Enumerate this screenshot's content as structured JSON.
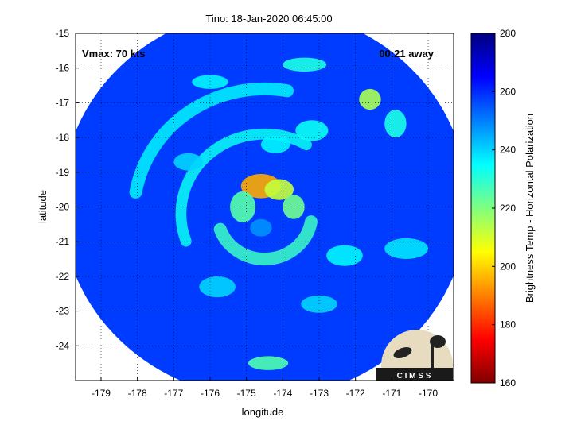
{
  "chart_data": {
    "type": "heatmap",
    "title": "Tino: 18-Jan-2020 06:45:00",
    "xlabel": "longitude",
    "ylabel": "latitude",
    "xlim": [
      -179.7,
      -169.3
    ],
    "ylim": [
      -25,
      -15
    ],
    "xticks": [
      -179,
      -178,
      -177,
      -176,
      -175,
      -174,
      -173,
      -172,
      -171,
      -170
    ],
    "yticks": [
      -15,
      -16,
      -17,
      -18,
      -19,
      -20,
      -21,
      -22,
      -23,
      -24
    ],
    "grid": true,
    "annotations": {
      "left": "Vmax: 70 kts",
      "right": "00:21 away"
    },
    "colorbar": {
      "label": "Brightness Temp - Horizontal Polarization",
      "range": [
        160,
        280
      ],
      "ticks": [
        160,
        180,
        200,
        220,
        240,
        260,
        280
      ],
      "colormap": "jet"
    },
    "swath": {
      "center": [
        -174.5,
        -19.9
      ],
      "radius_deg": 5.6
    },
    "background_value": 258,
    "features": [
      {
        "kind": "band",
        "center": [
          -174.5,
          -20.2
        ],
        "r": 1.3,
        "w": 0.35,
        "a0": 200,
        "a1": 350,
        "value": 228
      },
      {
        "kind": "band",
        "center": [
          -174.5,
          -20.2
        ],
        "r": 2.3,
        "w": 0.3,
        "a0": 60,
        "a1": 200,
        "value": 234
      },
      {
        "kind": "band",
        "center": [
          -174.5,
          -20.2
        ],
        "r": 3.6,
        "w": 0.35,
        "a0": 80,
        "a1": 170,
        "value": 236
      },
      {
        "kind": "blob",
        "x": -174.6,
        "y": -19.4,
        "rx": 0.55,
        "ry": 0.35,
        "value": 195
      },
      {
        "kind": "blob",
        "x": -174.1,
        "y": -19.5,
        "rx": 0.4,
        "ry": 0.3,
        "value": 212
      },
      {
        "kind": "blob",
        "x": -175.1,
        "y": -20.0,
        "rx": 0.35,
        "ry": 0.45,
        "value": 225
      },
      {
        "kind": "blob",
        "x": -173.7,
        "y": -20.0,
        "rx": 0.3,
        "ry": 0.35,
        "value": 222
      },
      {
        "kind": "blob",
        "x": -174.6,
        "y": -20.6,
        "rx": 0.3,
        "ry": 0.25,
        "value": 248
      },
      {
        "kind": "blob",
        "x": -171.6,
        "y": -16.9,
        "rx": 0.3,
        "ry": 0.3,
        "value": 215
      },
      {
        "kind": "blob",
        "x": -173.4,
        "y": -15.9,
        "rx": 0.6,
        "ry": 0.2,
        "value": 232
      },
      {
        "kind": "blob",
        "x": -170.9,
        "y": -17.6,
        "rx": 0.3,
        "ry": 0.4,
        "value": 232
      },
      {
        "kind": "blob",
        "x": -173.2,
        "y": -17.8,
        "rx": 0.45,
        "ry": 0.3,
        "value": 234
      },
      {
        "kind": "blob",
        "x": -174.2,
        "y": -18.2,
        "rx": 0.4,
        "ry": 0.25,
        "value": 236
      },
      {
        "kind": "blob",
        "x": -172.3,
        "y": -21.4,
        "rx": 0.5,
        "ry": 0.3,
        "value": 236
      },
      {
        "kind": "blob",
        "x": -170.6,
        "y": -21.2,
        "rx": 0.6,
        "ry": 0.3,
        "value": 238
      },
      {
        "kind": "blob",
        "x": -173.0,
        "y": -22.8,
        "rx": 0.5,
        "ry": 0.25,
        "value": 240
      },
      {
        "kind": "blob",
        "x": -174.4,
        "y": -24.5,
        "rx": 0.55,
        "ry": 0.2,
        "value": 226
      },
      {
        "kind": "blob",
        "x": -176.6,
        "y": -18.7,
        "rx": 0.4,
        "ry": 0.25,
        "value": 240
      },
      {
        "kind": "blob",
        "x": -176.0,
        "y": -16.4,
        "rx": 0.5,
        "ry": 0.2,
        "value": 236
      },
      {
        "kind": "blob",
        "x": -175.8,
        "y": -22.3,
        "rx": 0.5,
        "ry": 0.3,
        "value": 240
      }
    ],
    "logo_text": "C I M S S"
  }
}
